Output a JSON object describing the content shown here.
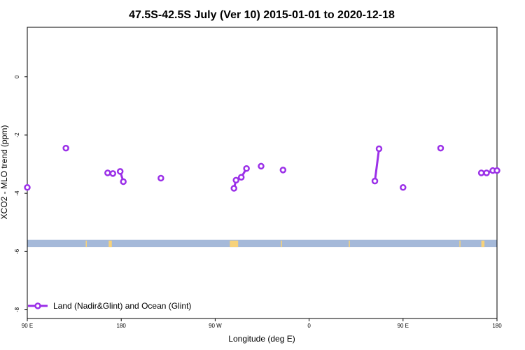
{
  "chart_data": {
    "type": "scatter",
    "title": "47.5S-42.5S July (Ver 10)   2015-01-01 to 2020-12-18",
    "xlabel": "Longitude (deg E)",
    "ylabel": "XCO2 - MLO trend (ppm)",
    "xlim": [
      90,
      540
    ],
    "ylim": [
      -8.3,
      1.7
    ],
    "x_ticks": [
      {
        "value": 90,
        "label": "90 E"
      },
      {
        "value": 180,
        "label": "180"
      },
      {
        "value": 270,
        "label": "90 W"
      },
      {
        "value": 360,
        "label": "0"
      },
      {
        "value": 450,
        "label": "90 E"
      },
      {
        "value": 540,
        "label": "180"
      }
    ],
    "y_ticks": [
      {
        "value": 0,
        "label": "0"
      },
      {
        "value": -2,
        "label": "-2"
      },
      {
        "value": -4,
        "label": "-4"
      },
      {
        "value": -6,
        "label": "-6"
      },
      {
        "value": -8,
        "label": "-8"
      }
    ],
    "legend": {
      "position": "bottom-left",
      "label": "Land (Nadir&Glint) and Ocean (Glint)"
    },
    "series": [
      {
        "name": "Land (Nadir&Glint) and Ocean (Glint)",
        "color": "#9b30e8",
        "segments": [
          [
            [
              90,
              -3.8
            ]
          ],
          [
            [
              127,
              -2.45
            ]
          ],
          [
            [
              167,
              -3.3
            ],
            [
              172,
              -3.32
            ]
          ],
          [
            [
              179,
              -3.25
            ],
            [
              182,
              -3.6
            ]
          ],
          [
            [
              218,
              -3.48
            ]
          ],
          [
            [
              288,
              -3.83
            ],
            [
              290,
              -3.55
            ],
            [
              295,
              -3.45
            ],
            [
              300,
              -3.15
            ]
          ],
          [
            [
              314,
              -3.07
            ]
          ],
          [
            [
              335,
              -3.2
            ]
          ],
          [
            [
              423,
              -3.58
            ],
            [
              427,
              -2.47
            ]
          ],
          [
            [
              450,
              -3.8
            ]
          ],
          [
            [
              486,
              -2.45
            ]
          ],
          [
            [
              525,
              -3.3
            ],
            [
              530,
              -3.3
            ],
            [
              536,
              -3.22
            ],
            [
              540,
              -3.22
            ]
          ]
        ]
      }
    ],
    "landmask": {
      "y_range": [
        -5.85,
        -5.6
      ],
      "ocean_color": "#a5b9d9",
      "land_color": "#f7d27a",
      "land_x_ranges": [
        [
          146,
          147
        ],
        [
          168,
          171
        ],
        [
          284,
          292
        ],
        [
          333,
          334
        ],
        [
          398,
          399
        ],
        [
          504,
          505
        ],
        [
          525,
          528
        ]
      ]
    }
  }
}
